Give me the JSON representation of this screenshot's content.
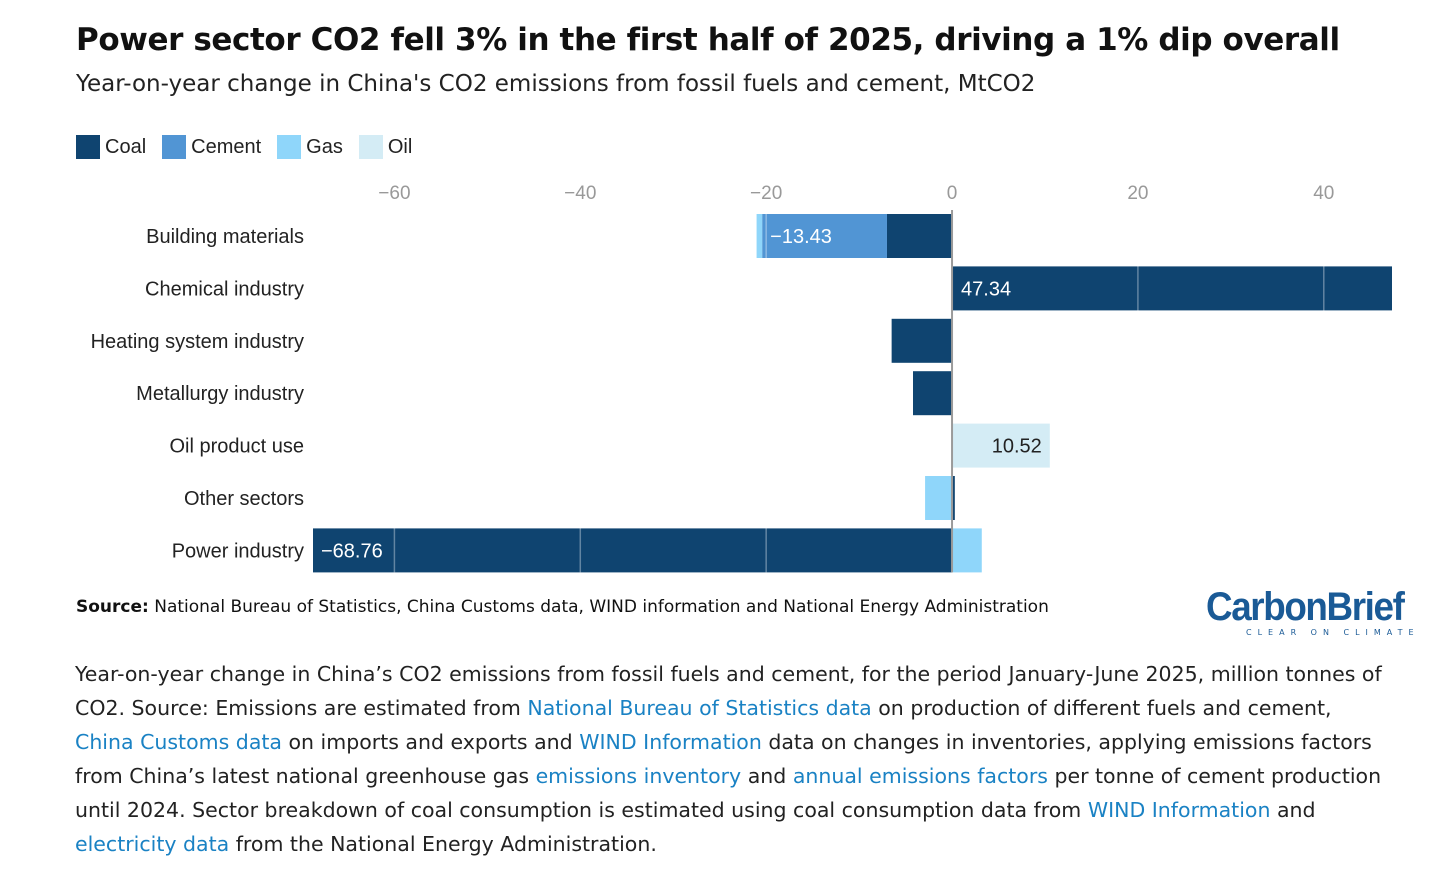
{
  "title": "Power sector CO2 fell 3% in the first half of 2025, driving a 1% dip overall",
  "subtitle": "Year-on-year change in China's CO2 emissions from fossil fuels and cement, MtCO2",
  "colors": {
    "coal": "#0f4470",
    "cement": "#5195d4",
    "gas": "#8fd6fa",
    "oil": "#d4ecf5"
  },
  "chart_data": {
    "type": "bar",
    "orientation": "horizontal",
    "stacked": true,
    "categories": [
      "Building materials",
      "Chemical industry",
      "Heating system industry",
      "Metallurgy industry",
      "Oil product use",
      "Other sectors",
      "Power industry"
    ],
    "series": [
      {
        "name": "Coal",
        "values": [
          -7.0,
          47.34,
          -6.5,
          -4.2,
          0,
          0.3,
          -68.76
        ]
      },
      {
        "name": "Cement",
        "values": [
          -13.43,
          0,
          0,
          0,
          0,
          0,
          0
        ]
      },
      {
        "name": "Gas",
        "values": [
          -0.6,
          0,
          0,
          0,
          0,
          -2.9,
          3.2
        ]
      },
      {
        "name": "Oil",
        "values": [
          0,
          0,
          0,
          0,
          10.52,
          0,
          0
        ]
      }
    ],
    "data_labels": [
      {
        "category": "Building materials",
        "series": "Cement",
        "text": "−13.43"
      },
      {
        "category": "Chemical industry",
        "series": "Coal",
        "text": "47.34"
      },
      {
        "category": "Oil product use",
        "series": "Oil",
        "text": "10.52"
      },
      {
        "category": "Power industry",
        "series": "Coal",
        "text": "−68.76"
      }
    ],
    "xlim": [
      -68.76,
      47.34
    ],
    "xticks": [
      -60,
      -40,
      -20,
      0,
      20,
      40
    ],
    "xtick_labels": [
      "−60",
      "−40",
      "−20",
      "0",
      "20",
      "40"
    ],
    "legend_position": "top-left",
    "grid": true
  },
  "source": {
    "label": "Source:",
    "text": " National Bureau of Statistics, China Customs data, WIND information and National Energy Administration"
  },
  "logo": {
    "word": "CarbonBrief",
    "tagline": "CLEAR ON CLIMATE"
  },
  "caption": [
    {
      "text": "Year-on-year change in China’s CO2 emissions from fossil fuels and cement, for the period January-June 2025, million tonnes of CO2. Source: Emissions are estimated from ",
      "link": false
    },
    {
      "text": "National Bureau of Statistics data",
      "link": true
    },
    {
      "text": " on production of different fuels and cement, ",
      "link": false
    },
    {
      "text": "China Customs data",
      "link": true
    },
    {
      "text": " on imports and exports and ",
      "link": false
    },
    {
      "text": "WIND Information",
      "link": true
    },
    {
      "text": " data on changes in inventories, applying emissions factors from China’s latest national greenhouse gas ",
      "link": false
    },
    {
      "text": "emissions inventory",
      "link": true
    },
    {
      "text": " and ",
      "link": false
    },
    {
      "text": "annual emissions factors",
      "link": true
    },
    {
      "text": " per tonne of cement production until 2024. Sector breakdown of coal consumption is estimated using coal consumption data from ",
      "link": false
    },
    {
      "text": "WIND Information",
      "link": true
    },
    {
      "text": " and ",
      "link": false
    },
    {
      "text": "electricity data",
      "link": true
    },
    {
      "text": " from the National Energy Administration.",
      "link": false
    }
  ]
}
